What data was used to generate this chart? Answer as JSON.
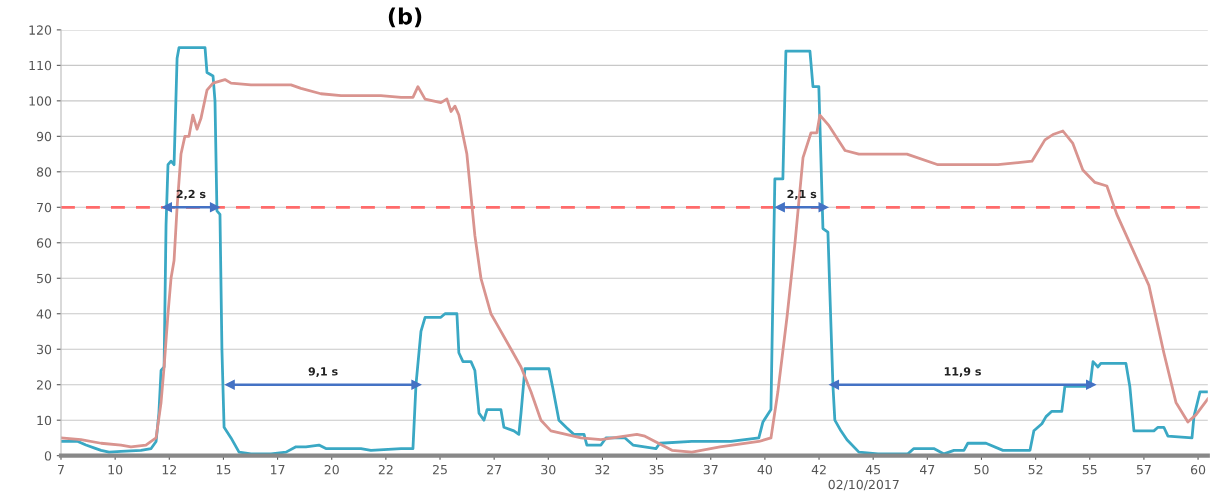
{
  "chart_data": {
    "type": "line",
    "title": "(b)",
    "xlabel": "02/10/2017",
    "xlim": [
      7.5,
      60.45
    ],
    "ylim": [
      0,
      120
    ],
    "xticks": [
      {
        "value": 7.5,
        "label": "7"
      },
      10,
      {
        "value": 12.5,
        "label": "12"
      },
      15,
      {
        "value": 17.5,
        "label": "17"
      },
      20,
      {
        "value": 22.5,
        "label": "22"
      },
      25,
      {
        "value": 27.5,
        "label": "27"
      },
      30,
      {
        "value": 32.5,
        "label": "32"
      },
      35,
      {
        "value": 37.5,
        "label": "37"
      },
      40,
      {
        "value": 42.5,
        "label": "42"
      },
      45,
      {
        "value": 47.5,
        "label": "47"
      },
      50,
      {
        "value": 52.5,
        "label": "52"
      },
      55,
      {
        "value": 57.5,
        "label": "57"
      },
      60
    ],
    "yticks": [
      0,
      10,
      20,
      30,
      40,
      50,
      60,
      70,
      80,
      90,
      100,
      110,
      120
    ],
    "grid": "y",
    "legend": false,
    "marker": "none",
    "line_style": "solid",
    "series": [
      {
        "color": "#3aa8c4",
        "x": [
          7.5,
          8.28,
          8.65,
          9.12,
          9.35,
          9.72,
          10.27,
          11.19,
          11.66,
          11.89,
          12.02,
          12.12,
          12.26,
          12.35,
          12.44,
          12.58,
          12.72,
          12.86,
          12.95,
          14.15,
          14.24,
          14.52,
          14.61,
          14.7,
          14.84,
          14.93,
          15.03,
          15.35,
          15.72,
          16.27,
          17.2,
          17.89,
          18.35,
          18.81,
          19.41,
          19.73,
          21.35,
          21.81,
          23.2,
          23.75,
          23.89,
          24.12,
          24.31,
          25.04,
          25.23,
          25.78,
          25.87,
          26.06,
          26.43,
          26.61,
          26.8,
          27.03,
          27.17,
          27.81,
          27.95,
          28.41,
          28.64,
          28.74,
          28.92,
          30.03,
          30.21,
          30.49,
          30.82,
          31.18,
          31.65,
          31.78,
          32.43,
          32.66,
          33.54,
          33.91,
          34.97,
          35.15,
          36.63,
          38.43,
          39.72,
          39.91,
          40.28,
          40.46,
          40.83,
          40.97,
          42.08,
          42.22,
          42.49,
          42.68,
          42.91,
          43.0,
          43.14,
          43.23,
          43.51,
          43.79,
          44.34,
          45.22,
          46.6,
          46.88,
          47.8,
          48.27,
          48.73,
          49.19,
          49.37,
          50.21,
          50.99,
          52.24,
          52.42,
          52.79,
          52.98,
          53.25,
          53.71,
          53.85,
          55.01,
          55.15,
          55.38,
          55.51,
          56.67,
          56.85,
          57.04,
          57.96,
          58.15,
          58.42,
          58.61,
          59.72,
          59.81,
          60.09,
          60.45
        ],
        "values": [
          4,
          4,
          3,
          2,
          1.5,
          1,
          1.2,
          1.5,
          2,
          4,
          12,
          24,
          25,
          65,
          82,
          83,
          82,
          112,
          115,
          115,
          108,
          107,
          100,
          69,
          68,
          30,
          8,
          5,
          1,
          0.5,
          0.5,
          1,
          2.5,
          2.5,
          3,
          2,
          2,
          1.5,
          2,
          2,
          20,
          35,
          39,
          39,
          40,
          40,
          29,
          26.5,
          26.5,
          24,
          12,
          10,
          13,
          13,
          8,
          7,
          6,
          12,
          24.5,
          24.5,
          19,
          10,
          8,
          6,
          6,
          3,
          3,
          5,
          5,
          3,
          2,
          3.5,
          4,
          4,
          5,
          9.5,
          13,
          78,
          78,
          114,
          114,
          104,
          104,
          64,
          63,
          46,
          20,
          10,
          7,
          4.5,
          1,
          0.5,
          0.5,
          2,
          2,
          0.5,
          1.5,
          1.5,
          3.5,
          3.5,
          1.5,
          1.5,
          7,
          9,
          11,
          12.5,
          12.5,
          19.5,
          19.5,
          26.5,
          25,
          26,
          26,
          19.5,
          7,
          7,
          8,
          8,
          5.5,
          5,
          11,
          18,
          18
        ]
      },
      {
        "color": "#d9948f",
        "x": [
          7.5,
          8.42,
          9.35,
          10.27,
          10.73,
          11.42,
          11.66,
          11.89,
          12.12,
          12.26,
          12.44,
          12.58,
          12.72,
          12.86,
          13.04,
          13.22,
          13.41,
          13.59,
          13.78,
          13.96,
          14.24,
          14.52,
          15.07,
          15.35,
          16.27,
          18.12,
          18.58,
          19.5,
          20.43,
          22.27,
          23.2,
          23.75,
          23.98,
          24.31,
          25.04,
          25.32,
          25.51,
          25.69,
          25.87,
          26.24,
          26.61,
          26.89,
          27.35,
          27.63,
          28.28,
          28.74,
          29.2,
          29.66,
          30.12,
          30.82,
          31.51,
          32.43,
          34.09,
          34.46,
          35.71,
          36.63,
          37.93,
          39.72,
          40.28,
          40.6,
          41.02,
          41.39,
          41.76,
          42.13,
          42.4,
          42.54,
          42.96,
          43.7,
          44.34,
          46.56,
          47.99,
          50.76,
          52.33,
          52.93,
          53.3,
          53.76,
          54.22,
          54.68,
          55.24,
          55.79,
          56.25,
          56.99,
          57.73,
          58.42,
          58.98,
          59.53,
          59.9,
          60.45
        ],
        "values": [
          5,
          4.5,
          3.5,
          3,
          2.5,
          3,
          4,
          5,
          15,
          25,
          40,
          50,
          55,
          70,
          85,
          90,
          90,
          96,
          92,
          95,
          103,
          105,
          106,
          105,
          104.5,
          104.5,
          103.5,
          102,
          101.5,
          101.5,
          101,
          101,
          104,
          100.5,
          99.5,
          100.5,
          97,
          98.5,
          96,
          85,
          62,
          50,
          40,
          37,
          30,
          25,
          18,
          10,
          7,
          6,
          5,
          4.5,
          6,
          5.5,
          1.5,
          1,
          2.5,
          4,
          5,
          18,
          39,
          60,
          84,
          91,
          91,
          96,
          93,
          86,
          85,
          85,
          82,
          82,
          83,
          89,
          90.5,
          91.5,
          88,
          80.5,
          77,
          76,
          68,
          58,
          48,
          29,
          15,
          9.5,
          11.5,
          16
        ]
      },
      {
        "marker": "triangle",
        "color": "#4472c4",
        "x": [
          12.4,
          14.6
        ],
        "values": [
          70,
          70
        ]
      },
      {
        "marker": "triangle",
        "color": "#4472c4",
        "x": [
          15.3,
          23.9
        ],
        "values": [
          20,
          20
        ]
      },
      {
        "marker": "triangle",
        "color": "#4472c4",
        "x": [
          40.7,
          42.7
        ],
        "values": [
          70,
          70
        ]
      },
      {
        "marker": "triangle",
        "color": "#4472c4",
        "x": [
          43.2,
          55.05
        ],
        "values": [
          20,
          20
        ]
      }
    ],
    "ref_lines": [
      {
        "axis": "y",
        "value": 70,
        "color": "#ff6b6b",
        "line_style": "dashed"
      }
    ],
    "annotations": [
      "2,2 s",
      "9,1 s",
      "2,1 s",
      "11,9 s"
    ]
  }
}
